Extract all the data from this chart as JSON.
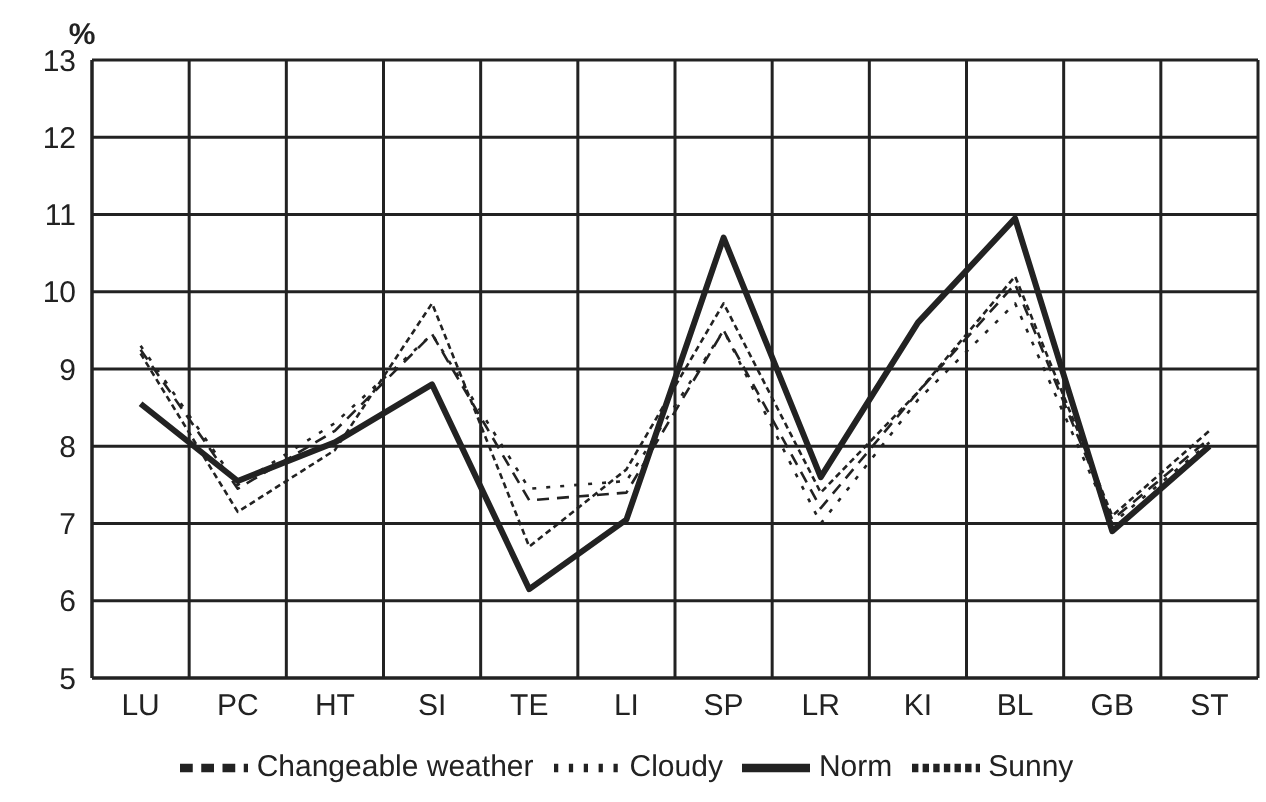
{
  "chart_data": {
    "type": "line",
    "ylabel": "%",
    "categories": [
      "LU",
      "PC",
      "HT",
      "SI",
      "TE",
      "LI",
      "SP",
      "LR",
      "KI",
      "BL",
      "GB",
      "ST"
    ],
    "series": [
      {
        "name": "Norm",
        "color": "#222222",
        "line_style": "solid",
        "values": [
          8.55,
          7.55,
          8.05,
          8.8,
          6.15,
          7.05,
          10.7,
          7.6,
          9.6,
          10.95,
          6.9,
          8.0
        ]
      },
      {
        "name": "Sunny",
        "color": "#222222",
        "line_style": "dashed",
        "values": [
          9.2,
          7.15,
          7.95,
          9.85,
          6.7,
          7.7,
          9.85,
          7.4,
          8.7,
          10.2,
          7.1,
          8.2
        ]
      },
      {
        "name": "Changeable weather",
        "color": "#222222",
        "line_style": "dashed",
        "values": [
          9.25,
          7.45,
          8.2,
          9.45,
          7.3,
          7.4,
          9.5,
          7.2,
          8.7,
          10.1,
          7.05,
          8.1
        ]
      },
      {
        "name": "Cloudy",
        "color": "#222222",
        "line_style": "dotted",
        "values": [
          9.3,
          7.5,
          8.3,
          9.45,
          7.45,
          7.55,
          9.5,
          7.0,
          8.6,
          9.85,
          7.0,
          8.05
        ]
      }
    ],
    "ylim": [
      5,
      13
    ],
    "yticks": [
      5,
      6,
      7,
      8,
      9,
      10,
      11,
      12,
      13
    ],
    "grid": true,
    "legend": "bottom",
    "marker": "none"
  }
}
